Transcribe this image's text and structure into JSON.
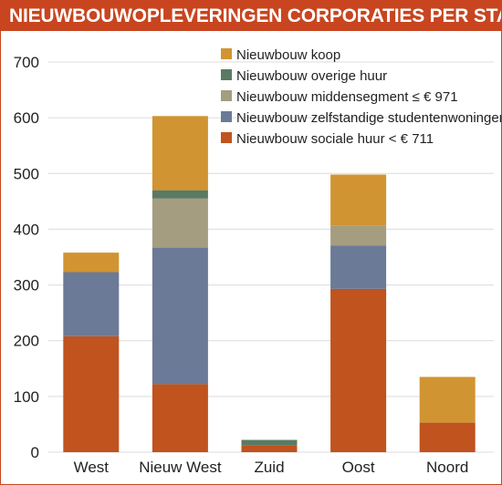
{
  "chart_data": {
    "type": "bar",
    "stacked": true,
    "title": "NIEUWBOUWOPLEVERINGEN CORPORATIES PER STADSDEEL",
    "xlabel": "",
    "ylabel": "",
    "ylim": [
      0,
      700
    ],
    "yticks": [
      0,
      100,
      200,
      300,
      400,
      500,
      600,
      700
    ],
    "grid": true,
    "legend_position": "top-right",
    "categories": [
      "West",
      "Nieuw West",
      "Zuid",
      "Oost",
      "Noord"
    ],
    "series": [
      {
        "name": "Nieuwbouw sociale huur < €  711",
        "color": "#c0531e",
        "values": [
          208,
          122,
          12,
          293,
          53
        ]
      },
      {
        "name": "Nieuwbouw zelfstandige studentenwoningen",
        "color": "#6b7a96",
        "values": [
          115,
          245,
          0,
          78,
          0
        ]
      },
      {
        "name": "Nieuwbouw middensegment ≤ € 971",
        "color": "#a59d80",
        "values": [
          0,
          88,
          0,
          35,
          0
        ]
      },
      {
        "name": "Nieuwbouw overige huur",
        "color": "#5b7a62",
        "values": [
          0,
          15,
          10,
          0,
          0
        ]
      },
      {
        "name": "Nieuwbouw koop",
        "color": "#d19432",
        "values": [
          35,
          133,
          0,
          92,
          82
        ]
      }
    ],
    "legend_order": [
      4,
      3,
      2,
      1,
      0
    ]
  }
}
